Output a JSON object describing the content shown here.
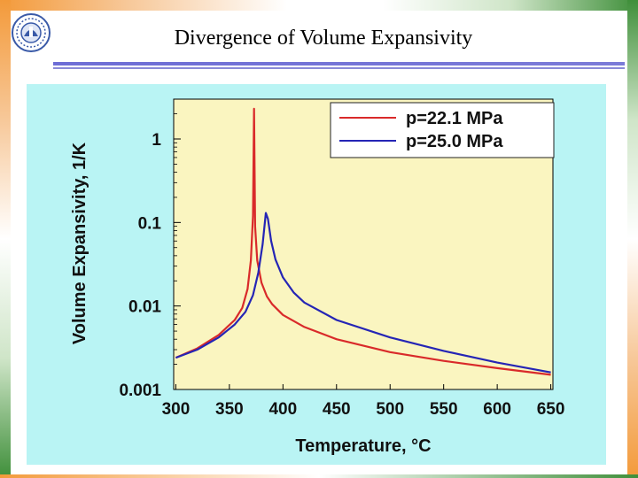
{
  "slide": {
    "title": "Divergence of Volume Expansivity"
  },
  "logo": {
    "name": "iit-delhi-logo"
  },
  "colors": {
    "plot_background": "#faf5c0",
    "chart_background": "#b9f4f4",
    "series_red": "#d92a2a",
    "series_blue": "#2525b5"
  },
  "chart_data": {
    "type": "line",
    "title": "",
    "xlabel": "Temperature, °C",
    "ylabel": "Volume Expansivity, 1/K",
    "xscale": "linear",
    "yscale": "log",
    "xlim": [
      298,
      652
    ],
    "ylim": [
      0.001,
      3
    ],
    "x_ticks": [
      300,
      350,
      400,
      450,
      500,
      550,
      600,
      650
    ],
    "x_tick_labels": [
      "300",
      "350",
      "400",
      "450",
      "500",
      "550",
      "600",
      "650"
    ],
    "y_ticks": [
      0.001,
      0.01,
      0.1,
      1
    ],
    "y_tick_labels": [
      "0.001",
      "0.01",
      "0.1",
      "1"
    ],
    "legend_position": "top-right",
    "series": [
      {
        "name": "p=22.1 MPa",
        "color": "#d92a2a",
        "x": [
          300,
          320,
          340,
          355,
          362,
          367,
          370,
          372,
          373,
          374,
          376,
          380,
          385,
          390,
          400,
          420,
          450,
          500,
          550,
          600,
          650
        ],
        "y": [
          0.0024,
          0.0031,
          0.0045,
          0.0068,
          0.0095,
          0.016,
          0.035,
          0.12,
          2.3,
          0.09,
          0.035,
          0.019,
          0.013,
          0.0105,
          0.0078,
          0.0056,
          0.004,
          0.0028,
          0.0022,
          0.0018,
          0.0015
        ]
      },
      {
        "name": "p=25.0 MPa",
        "color": "#2525b5",
        "x": [
          300,
          320,
          340,
          355,
          365,
          372,
          377,
          381,
          384,
          386,
          389,
          393,
          400,
          410,
          420,
          450,
          500,
          550,
          600,
          650
        ],
        "y": [
          0.0024,
          0.003,
          0.0042,
          0.006,
          0.0085,
          0.0135,
          0.025,
          0.055,
          0.13,
          0.11,
          0.06,
          0.036,
          0.022,
          0.0145,
          0.011,
          0.0068,
          0.0042,
          0.0029,
          0.0021,
          0.0016
        ]
      }
    ]
  }
}
